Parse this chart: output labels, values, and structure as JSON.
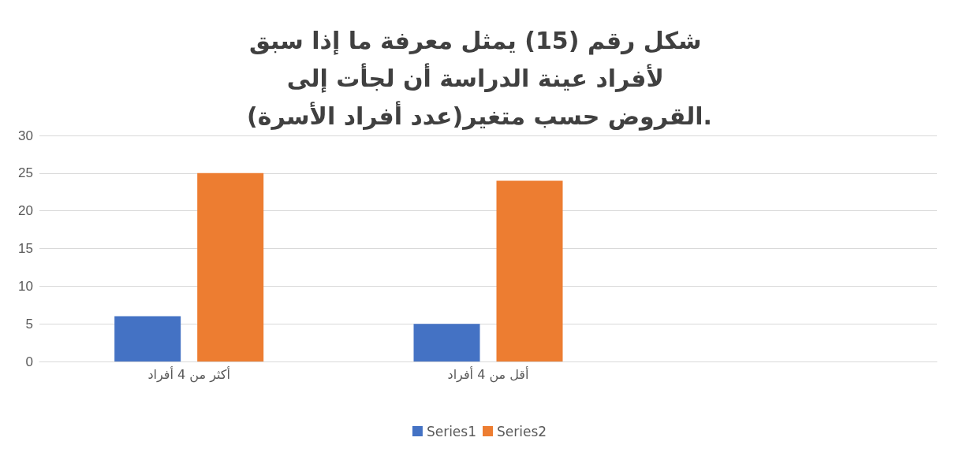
{
  "chart_data": {
    "type": "bar",
    "title": "شكل رقم (15) يمثل معرفة ما إذا سبق لأفراد عينة الدراسة أن لجأت إلى القروض حسب متغير(عدد أفراد الأسرة).",
    "categories": [
      "أكثر من 4 أفراد",
      "أقل من 4 أفراد",
      null
    ],
    "series": [
      {
        "name": "Series1",
        "color": "#4472c4",
        "values": [
          6,
          5,
          null
        ]
      },
      {
        "name": "Series2",
        "color": "#ed7d31",
        "values": [
          25,
          24,
          null
        ]
      }
    ],
    "ylim": [
      0,
      30
    ],
    "yticks": [
      0,
      5,
      10,
      15,
      20,
      25,
      30
    ],
    "grid": "y",
    "legend": "bottom"
  }
}
